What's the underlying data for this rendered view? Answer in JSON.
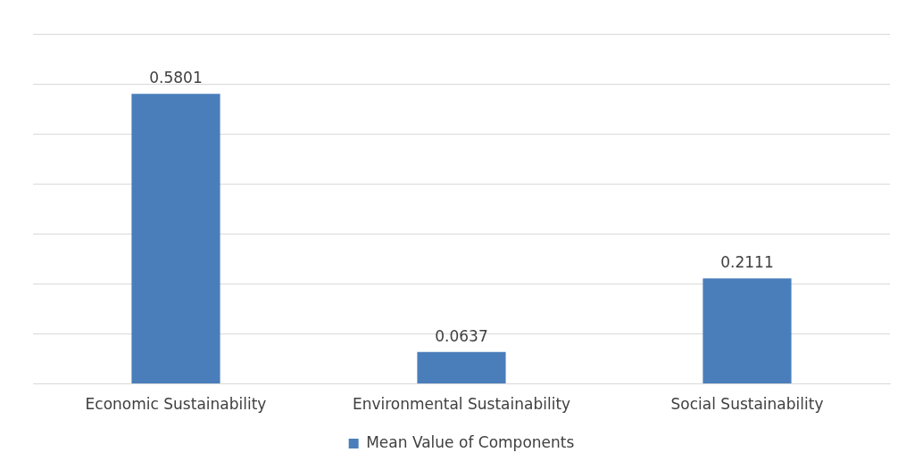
{
  "chart_data": {
    "type": "bar",
    "categories": [
      "Economic Sustainability",
      "Environmental Sustainability",
      "Social Sustainability"
    ],
    "series": [
      {
        "name": "Mean Value of Components",
        "color": "#4a7ebb",
        "values": [
          0.5801,
          0.0637,
          0.2111
        ]
      }
    ],
    "ylim": [
      0,
      0.7
    ],
    "yticks": [
      {
        "value": 0,
        "label": null
      },
      {
        "value": 0.1,
        "label": null
      },
      {
        "value": 0.2,
        "label": null
      },
      {
        "value": 0.3,
        "label": null
      },
      {
        "value": 0.4,
        "label": null
      },
      {
        "value": 0.5,
        "label": null
      },
      {
        "value": 0.6,
        "label": null
      },
      {
        "value": 0.7,
        "label": null
      }
    ],
    "tick_labels": "x",
    "grid": "y",
    "legend": "bottom",
    "data_labels": true
  }
}
